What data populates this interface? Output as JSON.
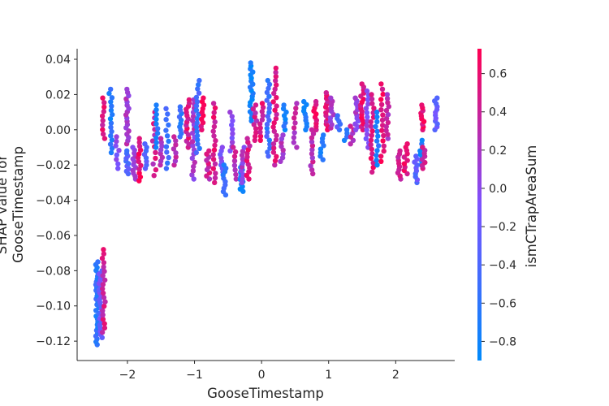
{
  "chart_data": {
    "type": "scatter",
    "title": "",
    "xlabel": "GooseTimestamp",
    "ylabel_lines": [
      "SHAP value for",
      "GooseTimestamp"
    ],
    "xlim": [
      -2.75,
      2.88
    ],
    "ylim": [
      -0.131,
      0.046
    ],
    "x_ticks": [
      {
        "value": -2,
        "label": "−2"
      },
      {
        "value": -1,
        "label": "−1"
      },
      {
        "value": 0,
        "label": "0"
      },
      {
        "value": 1,
        "label": "1"
      },
      {
        "value": 2,
        "label": "2"
      }
    ],
    "y_ticks": [
      {
        "value": 0.04,
        "label": "0.04"
      },
      {
        "value": 0.02,
        "label": "0.02"
      },
      {
        "value": 0.0,
        "label": "0.00"
      },
      {
        "value": -0.02,
        "label": "−0.02"
      },
      {
        "value": -0.04,
        "label": "−0.04"
      },
      {
        "value": -0.06,
        "label": "−0.06"
      },
      {
        "value": -0.08,
        "label": "−0.08"
      },
      {
        "value": -0.1,
        "label": "−0.10"
      },
      {
        "value": -0.12,
        "label": "−0.12"
      }
    ],
    "colorbar": {
      "label": "ismCTrapAreaSum",
      "range": [
        -0.9,
        0.73
      ],
      "low_color": "#008afb",
      "mid_color": "#7c52ff",
      "high_color": "#ff0052",
      "ticks": [
        {
          "value": 0.6,
          "label": "0.6"
        },
        {
          "value": 0.4,
          "label": "0.4"
        },
        {
          "value": 0.2,
          "label": "0.2"
        },
        {
          "value": 0.0,
          "label": "0.0"
        },
        {
          "value": -0.2,
          "label": "−0.2"
        },
        {
          "value": -0.4,
          "label": "−0.4"
        },
        {
          "value": -0.6,
          "label": "−0.6"
        },
        {
          "value": -0.8,
          "label": "−0.8"
        }
      ]
    },
    "clusters": [
      {
        "x": -2.45,
        "ylo": -0.122,
        "yhi": -0.075,
        "c": -0.6,
        "n": 30
      },
      {
        "x": -2.4,
        "ylo": -0.118,
        "yhi": -0.08,
        "c": -0.2,
        "n": 22
      },
      {
        "x": -2.35,
        "ylo": -0.115,
        "yhi": -0.068,
        "c": 0.45,
        "n": 20
      },
      {
        "x": -2.35,
        "ylo": -0.005,
        "yhi": 0.018,
        "c": 0.5,
        "n": 10
      },
      {
        "x": -2.25,
        "ylo": -0.013,
        "yhi": 0.023,
        "c": -0.7,
        "n": 16
      },
      {
        "x": -2.15,
        "ylo": -0.022,
        "yhi": -0.004,
        "c": 0.0,
        "n": 8
      },
      {
        "x": -2.0,
        "ylo": -0.008,
        "yhi": 0.023,
        "c": 0.2,
        "n": 18
      },
      {
        "x": -2.0,
        "ylo": -0.025,
        "yhi": -0.012,
        "c": -0.4,
        "n": 10
      },
      {
        "x": -1.9,
        "ylo": -0.028,
        "yhi": -0.01,
        "c": 0.1,
        "n": 12
      },
      {
        "x": -1.82,
        "ylo": -0.029,
        "yhi": -0.005,
        "c": 0.6,
        "n": 12
      },
      {
        "x": -1.72,
        "ylo": -0.022,
        "yhi": -0.008,
        "c": -0.3,
        "n": 8
      },
      {
        "x": -1.6,
        "ylo": -0.026,
        "yhi": 0.01,
        "c": 0.4,
        "n": 12
      },
      {
        "x": -1.55,
        "ylo": -0.01,
        "yhi": 0.014,
        "c": -0.7,
        "n": 10
      },
      {
        "x": -1.5,
        "ylo": -0.02,
        "yhi": -0.005,
        "c": 0.2,
        "n": 8
      },
      {
        "x": -1.4,
        "ylo": -0.022,
        "yhi": 0.012,
        "c": -0.5,
        "n": 12
      },
      {
        "x": -1.3,
        "ylo": -0.02,
        "yhi": -0.004,
        "c": 0.3,
        "n": 8
      },
      {
        "x": -1.2,
        "ylo": -0.004,
        "yhi": 0.013,
        "c": -0.6,
        "n": 10
      },
      {
        "x": -1.1,
        "ylo": -0.01,
        "yhi": 0.017,
        "c": 0.5,
        "n": 16
      },
      {
        "x": -1.02,
        "ylo": -0.028,
        "yhi": 0.017,
        "c": 0.15,
        "n": 20
      },
      {
        "x": -0.95,
        "ylo": -0.013,
        "yhi": 0.028,
        "c": -0.5,
        "n": 18
      },
      {
        "x": -0.88,
        "ylo": 0.0,
        "yhi": 0.018,
        "c": 0.6,
        "n": 10
      },
      {
        "x": -0.8,
        "ylo": -0.028,
        "yhi": -0.012,
        "c": 0.4,
        "n": 10
      },
      {
        "x": -0.7,
        "ylo": -0.03,
        "yhi": 0.015,
        "c": 0.5,
        "n": 18
      },
      {
        "x": -0.6,
        "ylo": -0.024,
        "yhi": -0.01,
        "c": -0.1,
        "n": 8
      },
      {
        "x": -0.55,
        "ylo": -0.037,
        "yhi": -0.02,
        "c": -0.6,
        "n": 10
      },
      {
        "x": -0.45,
        "ylo": -0.012,
        "yhi": 0.01,
        "c": 0.0,
        "n": 10
      },
      {
        "x": -0.4,
        "ylo": -0.028,
        "yhi": -0.01,
        "c": 0.3,
        "n": 8
      },
      {
        "x": -0.3,
        "ylo": -0.035,
        "yhi": -0.02,
        "c": -0.7,
        "n": 12
      },
      {
        "x": -0.28,
        "ylo": -0.03,
        "yhi": -0.01,
        "c": 0.1,
        "n": 10
      },
      {
        "x": -0.2,
        "ylo": -0.028,
        "yhi": -0.005,
        "c": 0.5,
        "n": 12
      },
      {
        "x": -0.15,
        "ylo": 0.005,
        "yhi": 0.038,
        "c": -0.8,
        "n": 20
      },
      {
        "x": -0.1,
        "ylo": -0.006,
        "yhi": 0.014,
        "c": 0.4,
        "n": 10
      },
      {
        "x": 0.0,
        "ylo": -0.006,
        "yhi": 0.015,
        "c": 0.5,
        "n": 10
      },
      {
        "x": 0.1,
        "ylo": -0.015,
        "yhi": 0.028,
        "c": -0.5,
        "n": 20
      },
      {
        "x": 0.2,
        "ylo": -0.02,
        "yhi": 0.035,
        "c": 0.5,
        "n": 24
      },
      {
        "x": 0.3,
        "ylo": -0.018,
        "yhi": -0.003,
        "c": 0.2,
        "n": 8
      },
      {
        "x": 0.35,
        "ylo": 0.0,
        "yhi": 0.014,
        "c": -0.7,
        "n": 8
      },
      {
        "x": 0.5,
        "ylo": -0.01,
        "yhi": 0.015,
        "c": 0.3,
        "n": 10
      },
      {
        "x": 0.65,
        "ylo": 0.0,
        "yhi": 0.016,
        "c": -0.7,
        "n": 10
      },
      {
        "x": 0.75,
        "ylo": -0.025,
        "yhi": 0.0,
        "c": 0.3,
        "n": 12
      },
      {
        "x": 0.8,
        "ylo": 0.0,
        "yhi": 0.016,
        "c": 0.6,
        "n": 10
      },
      {
        "x": 0.9,
        "ylo": -0.017,
        "yhi": -0.003,
        "c": -0.7,
        "n": 8
      },
      {
        "x": 0.98,
        "ylo": 0.0,
        "yhi": 0.021,
        "c": 0.5,
        "n": 14
      },
      {
        "x": 1.05,
        "ylo": 0.001,
        "yhi": 0.018,
        "c": 0.2,
        "n": 10
      },
      {
        "x": 1.15,
        "ylo": 0.0,
        "yhi": 0.008,
        "c": -0.4,
        "n": 6
      },
      {
        "x": 1.25,
        "ylo": -0.006,
        "yhi": 0.0,
        "c": -0.7,
        "n": 4
      },
      {
        "x": 1.35,
        "ylo": -0.008,
        "yhi": 0.002,
        "c": 0.3,
        "n": 6
      },
      {
        "x": 1.42,
        "ylo": 0.0,
        "yhi": 0.018,
        "c": 0.1,
        "n": 12
      },
      {
        "x": 1.5,
        "ylo": 0.0,
        "yhi": 0.026,
        "c": 0.6,
        "n": 16
      },
      {
        "x": 1.58,
        "ylo": -0.01,
        "yhi": 0.022,
        "c": 0.0,
        "n": 14
      },
      {
        "x": 1.65,
        "ylo": -0.024,
        "yhi": 0.02,
        "c": 0.5,
        "n": 18
      },
      {
        "x": 1.72,
        "ylo": -0.02,
        "yhi": 0.01,
        "c": -0.7,
        "n": 12
      },
      {
        "x": 1.8,
        "ylo": -0.018,
        "yhi": 0.026,
        "c": 0.6,
        "n": 16
      },
      {
        "x": 1.88,
        "ylo": -0.005,
        "yhi": 0.02,
        "c": 0.3,
        "n": 12
      },
      {
        "x": 2.05,
        "ylo": -0.028,
        "yhi": -0.012,
        "c": 0.5,
        "n": 10
      },
      {
        "x": 2.15,
        "ylo": -0.025,
        "yhi": -0.008,
        "c": 0.6,
        "n": 10
      },
      {
        "x": 2.3,
        "ylo": -0.03,
        "yhi": -0.015,
        "c": -0.3,
        "n": 10
      },
      {
        "x": 2.38,
        "ylo": -0.02,
        "yhi": -0.006,
        "c": -0.7,
        "n": 8
      },
      {
        "x": 2.42,
        "ylo": -0.022,
        "yhi": -0.01,
        "c": 0.4,
        "n": 8
      },
      {
        "x": 2.4,
        "ylo": 0.0,
        "yhi": 0.014,
        "c": 0.6,
        "n": 10
      },
      {
        "x": 2.6,
        "ylo": 0.0,
        "yhi": 0.018,
        "c": -0.2,
        "n": 12
      }
    ]
  }
}
